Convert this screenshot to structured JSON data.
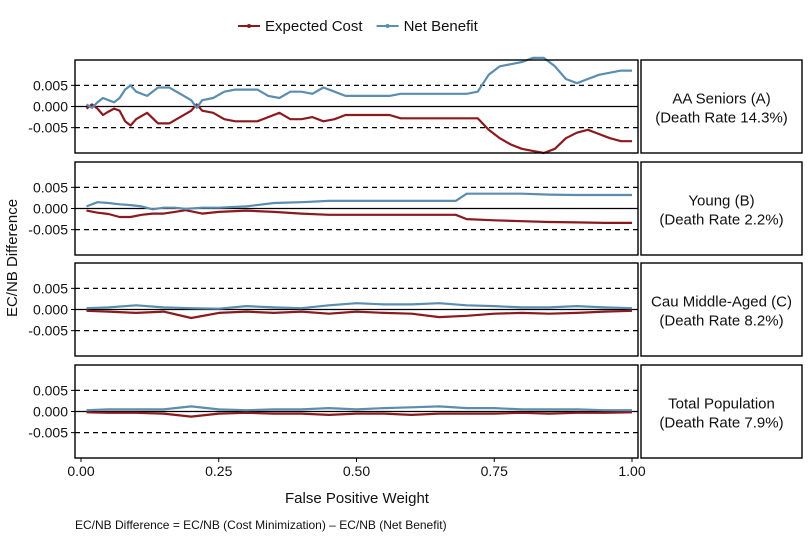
{
  "chart_data": {
    "type": "line",
    "x_axis_label": "False Positive Weight",
    "y_axis_label": "EC/NB Difference",
    "caption": "EC/NB Difference = EC/NB (Cost Minimization) – EC/NB (Net Benefit)",
    "x_range": [
      0,
      1
    ],
    "x_ticks": [
      0,
      0.25,
      0.5,
      0.75,
      1
    ],
    "x_tick_labels": [
      "0.00",
      "0.25",
      "0.50",
      "0.75",
      "1.00"
    ],
    "y_range": [
      -0.011,
      0.011
    ],
    "y_ticks": [
      -0.005,
      0,
      0.005
    ],
    "y_tick_labels": [
      "-0.005",
      "0.000",
      "0.005"
    ],
    "reference_lines": [
      -0.005,
      0,
      0.005
    ],
    "legend_position": "top",
    "series_styles": [
      {
        "name": "Expected Cost",
        "color": "#8b1a1f"
      },
      {
        "name": "Net Benefit",
        "color": "#5b8db0"
      }
    ],
    "panels": [
      {
        "label_line1": "AA Seniors (A)",
        "label_line2": "(Death Rate 14.3%)",
        "series": [
          {
            "name": "Expected Cost",
            "x": [
              0.01,
              0.02,
              0.03,
              0.04,
              0.05,
              0.06,
              0.07,
              0.08,
              0.09,
              0.1,
              0.12,
              0.14,
              0.16,
              0.18,
              0.2,
              0.21,
              0.22,
              0.24,
              0.26,
              0.28,
              0.3,
              0.32,
              0.34,
              0.36,
              0.38,
              0.4,
              0.42,
              0.44,
              0.46,
              0.48,
              0.5,
              0.52,
              0.54,
              0.56,
              0.58,
              0.6,
              0.62,
              0.64,
              0.66,
              0.68,
              0.7,
              0.72,
              0.74,
              0.76,
              0.78,
              0.8,
              0.82,
              0.84,
              0.86,
              0.88,
              0.9,
              0.92,
              0.94,
              0.96,
              0.98,
              1.0
            ],
            "y": [
              -0.0005,
              0.0005,
              -0.0005,
              -0.002,
              -0.0012,
              -0.0005,
              -0.001,
              -0.0035,
              -0.0045,
              -0.003,
              -0.0015,
              -0.004,
              -0.004,
              -0.0025,
              -0.001,
              0.0005,
              -0.001,
              -0.0015,
              -0.003,
              -0.0035,
              -0.0035,
              -0.0035,
              -0.0025,
              -0.0015,
              -0.003,
              -0.003,
              -0.0025,
              -0.0035,
              -0.003,
              -0.002,
              -0.002,
              -0.002,
              -0.002,
              -0.002,
              -0.0028,
              -0.0028,
              -0.0028,
              -0.0028,
              -0.0028,
              -0.0028,
              -0.0028,
              -0.0028,
              -0.0055,
              -0.0075,
              -0.009,
              -0.01,
              -0.0105,
              -0.011,
              -0.01,
              -0.0075,
              -0.0062,
              -0.0055,
              -0.0065,
              -0.0075,
              -0.0082,
              -0.0082
            ]
          },
          {
            "name": "Net Benefit",
            "x": [
              0.01,
              0.02,
              0.03,
              0.04,
              0.05,
              0.06,
              0.07,
              0.08,
              0.09,
              0.1,
              0.12,
              0.14,
              0.16,
              0.18,
              0.2,
              0.21,
              0.22,
              0.24,
              0.26,
              0.28,
              0.3,
              0.32,
              0.34,
              0.36,
              0.38,
              0.4,
              0.42,
              0.44,
              0.46,
              0.48,
              0.5,
              0.52,
              0.54,
              0.56,
              0.58,
              0.6,
              0.62,
              0.64,
              0.66,
              0.68,
              0.7,
              0.72,
              0.74,
              0.76,
              0.78,
              0.8,
              0.82,
              0.84,
              0.86,
              0.88,
              0.9,
              0.92,
              0.94,
              0.96,
              0.98,
              1.0
            ],
            "y": [
              0.0005,
              -0.0003,
              0.001,
              0.002,
              0.0015,
              0.001,
              0.002,
              0.004,
              0.005,
              0.0035,
              0.0025,
              0.0045,
              0.0045,
              0.003,
              0.0015,
              -0.0003,
              0.0015,
              0.002,
              0.0035,
              0.004,
              0.004,
              0.004,
              0.0025,
              0.002,
              0.0035,
              0.0035,
              0.003,
              0.0045,
              0.0035,
              0.0025,
              0.0025,
              0.0025,
              0.0025,
              0.0025,
              0.003,
              0.003,
              0.003,
              0.003,
              0.003,
              0.003,
              0.003,
              0.0035,
              0.0075,
              0.0095,
              0.01,
              0.0105,
              0.0115,
              0.0115,
              0.0095,
              0.0065,
              0.0055,
              0.0065,
              0.0075,
              0.008,
              0.0085,
              0.0085
            ]
          }
        ]
      },
      {
        "label_line1": "Young (B)",
        "label_line2": "(Death Rate 2.2%)",
        "series": [
          {
            "name": "Expected Cost",
            "x": [
              0.01,
              0.03,
              0.05,
              0.07,
              0.09,
              0.11,
              0.13,
              0.15,
              0.17,
              0.19,
              0.22,
              0.25,
              0.3,
              0.35,
              0.4,
              0.45,
              0.5,
              0.55,
              0.6,
              0.65,
              0.68,
              0.7,
              0.75,
              0.8,
              0.85,
              0.9,
              0.95,
              1.0
            ],
            "y": [
              -0.0005,
              -0.001,
              -0.0013,
              -0.002,
              -0.002,
              -0.0015,
              -0.0012,
              -0.0012,
              -0.0008,
              -0.0004,
              -0.0012,
              -0.0008,
              -0.0005,
              -0.0008,
              -0.0012,
              -0.0015,
              -0.0015,
              -0.0015,
              -0.0015,
              -0.0015,
              -0.0015,
              -0.0025,
              -0.0028,
              -0.003,
              -0.0032,
              -0.0033,
              -0.0034,
              -0.0034
            ]
          },
          {
            "name": "Net Benefit",
            "x": [
              0.01,
              0.03,
              0.05,
              0.07,
              0.09,
              0.11,
              0.13,
              0.15,
              0.17,
              0.19,
              0.22,
              0.25,
              0.3,
              0.35,
              0.4,
              0.45,
              0.5,
              0.55,
              0.6,
              0.65,
              0.68,
              0.7,
              0.75,
              0.8,
              0.85,
              0.9,
              0.95,
              1.0
            ],
            "y": [
              0.0005,
              0.0015,
              0.0013,
              0.001,
              0.0008,
              0.0005,
              -0.0002,
              0.0002,
              0.0002,
              -0.0001,
              0.0002,
              0.0002,
              0.0005,
              0.0013,
              0.0015,
              0.0018,
              0.0018,
              0.0018,
              0.0018,
              0.0018,
              0.0018,
              0.0035,
              0.0035,
              0.0035,
              0.0033,
              0.0032,
              0.0032,
              0.0032
            ]
          }
        ]
      },
      {
        "label_line1": "Cau Middle-Aged (C)",
        "label_line2": "(Death Rate 8.2%)",
        "series": [
          {
            "name": "Expected Cost",
            "x": [
              0.01,
              0.05,
              0.1,
              0.15,
              0.2,
              0.25,
              0.3,
              0.35,
              0.4,
              0.45,
              0.5,
              0.55,
              0.6,
              0.65,
              0.7,
              0.75,
              0.8,
              0.85,
              0.9,
              0.95,
              1.0
            ],
            "y": [
              -0.0003,
              -0.0005,
              -0.0008,
              -0.0005,
              -0.002,
              -0.0008,
              -0.0005,
              -0.0008,
              -0.0005,
              -0.001,
              -0.0005,
              -0.0008,
              -0.001,
              -0.0018,
              -0.0015,
              -0.001,
              -0.0008,
              -0.001,
              -0.0008,
              -0.0005,
              -0.0003
            ]
          },
          {
            "name": "Net Benefit",
            "x": [
              0.01,
              0.05,
              0.1,
              0.15,
              0.2,
              0.25,
              0.3,
              0.35,
              0.4,
              0.45,
              0.5,
              0.55,
              0.6,
              0.65,
              0.7,
              0.75,
              0.8,
              0.85,
              0.9,
              0.95,
              1.0
            ],
            "y": [
              0.0003,
              0.0005,
              0.001,
              0.0005,
              0.0003,
              0.0002,
              0.0008,
              0.0005,
              0.0003,
              0.001,
              0.0015,
              0.0012,
              0.0012,
              0.0015,
              0.001,
              0.0008,
              0.0005,
              0.0005,
              0.0008,
              0.0005,
              0.0003
            ]
          }
        ]
      },
      {
        "label_line1": "Total Population",
        "label_line2": "(Death Rate 7.9%)",
        "series": [
          {
            "name": "Expected Cost",
            "x": [
              0.01,
              0.05,
              0.1,
              0.15,
              0.2,
              0.25,
              0.3,
              0.35,
              0.4,
              0.45,
              0.5,
              0.55,
              0.6,
              0.65,
              0.7,
              0.75,
              0.8,
              0.85,
              0.9,
              0.95,
              1.0
            ],
            "y": [
              -0.0002,
              -0.0003,
              -0.0003,
              -0.0005,
              -0.0012,
              -0.0005,
              -0.0003,
              -0.0005,
              -0.0005,
              -0.0008,
              -0.0005,
              -0.0005,
              -0.0008,
              -0.0005,
              -0.0005,
              -0.0005,
              -0.0003,
              -0.0005,
              -0.0003,
              -0.0003,
              -0.0002
            ]
          },
          {
            "name": "Net Benefit",
            "x": [
              0.01,
              0.05,
              0.1,
              0.15,
              0.2,
              0.25,
              0.3,
              0.35,
              0.4,
              0.45,
              0.5,
              0.55,
              0.6,
              0.65,
              0.7,
              0.75,
              0.8,
              0.85,
              0.9,
              0.95,
              1.0
            ],
            "y": [
              0.0003,
              0.0005,
              0.0005,
              0.0005,
              0.0012,
              0.0005,
              0.0003,
              0.0005,
              0.0005,
              0.0008,
              0.0005,
              0.0008,
              0.001,
              0.0012,
              0.0008,
              0.0008,
              0.0005,
              0.0005,
              0.0005,
              0.0003,
              0.0003
            ]
          }
        ]
      }
    ]
  }
}
